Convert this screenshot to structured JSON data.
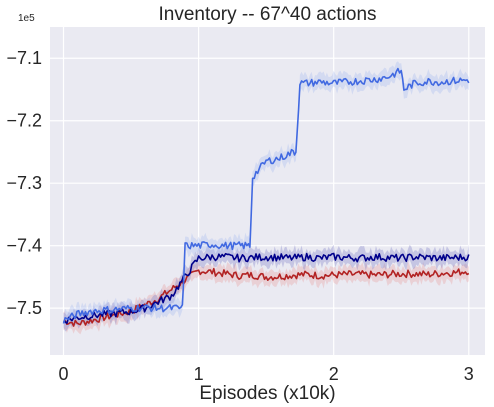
{
  "chart_data": {
    "type": "line",
    "title": "Inventory -- 67^40 actions",
    "xlabel": "Episodes (x10k)",
    "ylabel": "",
    "y_multiplier": "1e5",
    "xlim": [
      -0.1,
      3.12
    ],
    "ylim": [
      -7.575,
      -7.05
    ],
    "x_ticks": [
      0,
      1,
      2,
      3
    ],
    "x_tick_labels": [
      "0",
      "1",
      "2",
      "3"
    ],
    "y_ticks": [
      -7.5,
      -7.4,
      -7.3,
      -7.2,
      -7.1
    ],
    "y_tick_labels": [
      "−7.5",
      "−7.4",
      "−7.3",
      "−7.2",
      "−7.1"
    ],
    "grid": true,
    "legend": "none",
    "background": "#eaeaf2",
    "series": [
      {
        "color": "#b22222",
        "band_color": "#e8a0a0",
        "x": [
          0.0,
          0.1,
          0.2,
          0.3,
          0.4,
          0.5,
          0.6,
          0.7,
          0.8,
          0.9,
          1.0,
          1.1,
          1.2,
          1.3,
          1.4,
          1.5,
          1.6,
          1.7,
          1.8,
          1.9,
          2.0,
          2.1,
          2.2,
          2.3,
          2.4,
          2.5,
          2.6,
          2.7,
          2.8,
          2.9,
          3.0
        ],
        "values": [
          -7.52,
          -7.525,
          -7.52,
          -7.515,
          -7.51,
          -7.505,
          -7.495,
          -7.485,
          -7.47,
          -7.455,
          -7.44,
          -7.442,
          -7.445,
          -7.448,
          -7.447,
          -7.45,
          -7.449,
          -7.447,
          -7.446,
          -7.448,
          -7.447,
          -7.446,
          -7.446,
          -7.447,
          -7.446,
          -7.445,
          -7.445,
          -7.446,
          -7.444,
          -7.443,
          -7.44
        ]
      },
      {
        "color": "#00008b",
        "band_color": "#8080c8",
        "x": [
          0.0,
          0.1,
          0.2,
          0.3,
          0.4,
          0.5,
          0.6,
          0.7,
          0.8,
          0.9,
          1.0,
          1.1,
          1.2,
          1.3,
          1.4,
          1.5,
          1.6,
          1.7,
          1.8,
          1.9,
          2.0,
          2.1,
          2.2,
          2.3,
          2.4,
          2.5,
          2.6,
          2.7,
          2.8,
          2.9,
          3.0
        ],
        "values": [
          -7.52,
          -7.515,
          -7.512,
          -7.51,
          -7.508,
          -7.505,
          -7.5,
          -7.49,
          -7.48,
          -7.45,
          -7.42,
          -7.418,
          -7.418,
          -7.42,
          -7.419,
          -7.418,
          -7.419,
          -7.42,
          -7.418,
          -7.42,
          -7.418,
          -7.419,
          -7.42,
          -7.418,
          -7.419,
          -7.42,
          -7.418,
          -7.419,
          -7.42,
          -7.419,
          -7.418
        ]
      },
      {
        "color": "#4169e1",
        "band_color": "#a8bcf0",
        "x": [
          0.0,
          0.1,
          0.2,
          0.3,
          0.4,
          0.5,
          0.6,
          0.7,
          0.8,
          0.88,
          0.9,
          1.0,
          1.1,
          1.2,
          1.3,
          1.38,
          1.4,
          1.5,
          1.6,
          1.7,
          1.72,
          1.75,
          1.8,
          1.9,
          2.0,
          2.1,
          2.2,
          2.3,
          2.4,
          2.5,
          2.52,
          2.6,
          2.7,
          2.8,
          2.9,
          3.0
        ],
        "values": [
          -7.52,
          -7.51,
          -7.505,
          -7.503,
          -7.502,
          -7.5,
          -7.499,
          -7.5,
          -7.5,
          -7.5,
          -7.4,
          -7.4,
          -7.398,
          -7.4,
          -7.4,
          -7.4,
          -7.29,
          -7.265,
          -7.26,
          -7.25,
          -7.25,
          -7.14,
          -7.14,
          -7.138,
          -7.14,
          -7.138,
          -7.136,
          -7.134,
          -7.13,
          -7.12,
          -7.15,
          -7.14,
          -7.137,
          -7.138,
          -7.136,
          -7.135
        ]
      }
    ]
  }
}
